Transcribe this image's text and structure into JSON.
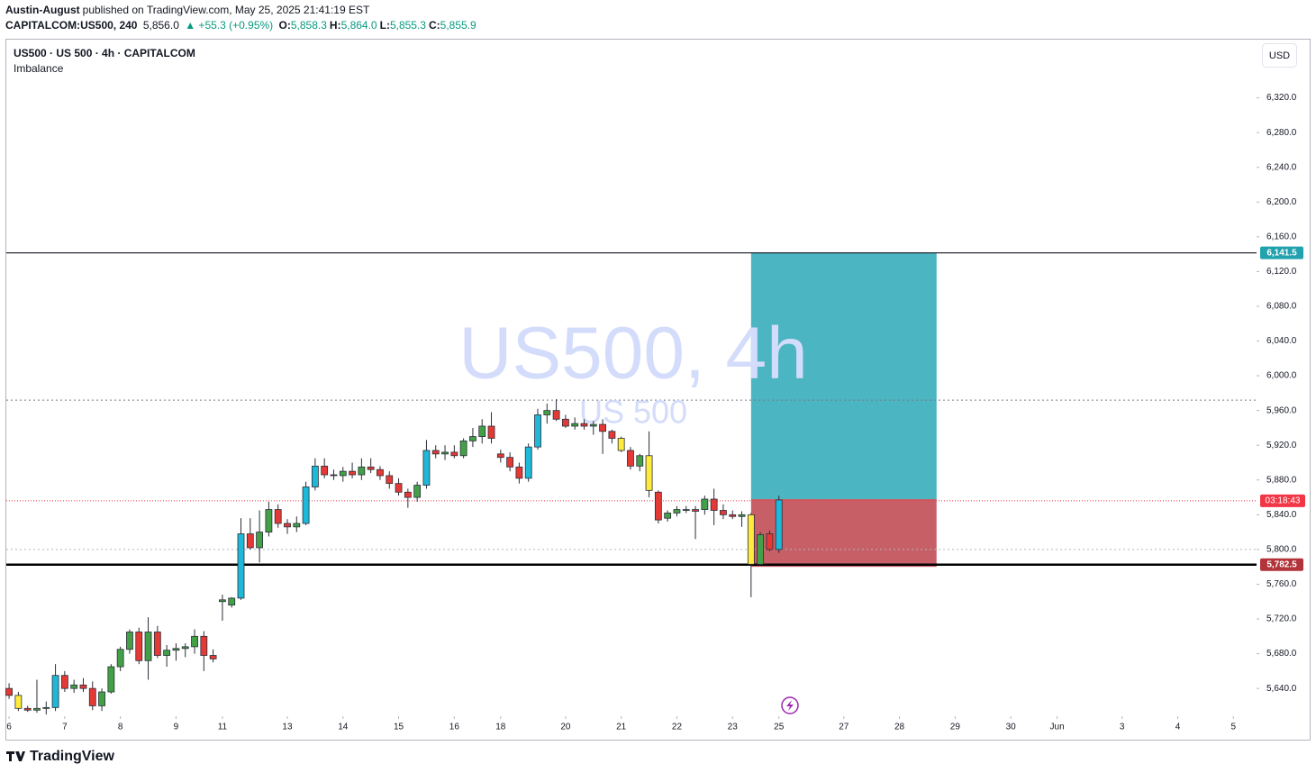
{
  "header": {
    "author": "Austin-August",
    "published": "published on TradingView.com, May 25, 2025 21:41:19 EST",
    "symbol": "CAPITALCOM:US500, 240",
    "last": "5,856.0",
    "change": "▲ +55.3 (+0.95%)",
    "ohlc": [
      {
        "key": "O:",
        "value": "5,858.3"
      },
      {
        "key": "H:",
        "value": "5,864.0"
      },
      {
        "key": "L:",
        "value": "5,855.3"
      },
      {
        "key": "C:",
        "value": "5,855.9"
      }
    ]
  },
  "chart_data": {
    "type": "candlestick",
    "title": "US500 · US 500 · 4h · CAPITALCOM",
    "indicator": "Imbalance",
    "currency": "USD",
    "watermark": "US500, 4h",
    "watermark_sub": "US 500",
    "logo": "TradingView",
    "open": [
      5640,
      5632,
      5617,
      5615,
      5617,
      5618,
      5655,
      5640,
      5644,
      5640,
      5620,
      5636,
      5665,
      5685,
      5705,
      5672,
      5705,
      5678,
      5684,
      5686,
      5688,
      5700,
      5678,
      5740,
      5736,
      5744,
      5818,
      5802,
      5820,
      5846,
      5830,
      5826,
      5830,
      5872,
      5896,
      5886,
      5885,
      5890,
      5886,
      5895,
      5892,
      5885,
      5876,
      5866,
      5860,
      5874,
      5914,
      5910,
      5912,
      5908,
      5925,
      5930,
      5942,
      5910,
      5906,
      5895,
      5882,
      5918,
      5955,
      5960,
      5950,
      5942,
      5945,
      5942,
      5944,
      5936,
      5928,
      5914,
      5896,
      5908,
      5866,
      5836,
      5842,
      5846,
      5846,
      5846,
      5858,
      5845,
      5840,
      5838,
      5840,
      5783,
      5818,
      5800
    ],
    "high": [
      5646,
      5636,
      5620,
      5650,
      5625,
      5668,
      5660,
      5650,
      5652,
      5648,
      5640,
      5668,
      5688,
      5708,
      5710,
      5722,
      5712,
      5690,
      5692,
      5692,
      5708,
      5706,
      5685,
      5748,
      5745,
      5836,
      5836,
      5845,
      5855,
      5852,
      5835,
      5838,
      5878,
      5905,
      5905,
      5892,
      5895,
      5900,
      5905,
      5905,
      5896,
      5890,
      5882,
      5870,
      5878,
      5926,
      5920,
      5920,
      5920,
      5928,
      5940,
      5950,
      5958,
      5915,
      5912,
      5900,
      5922,
      5962,
      5968,
      5973,
      5955,
      5952,
      5950,
      5948,
      5950,
      5938,
      5930,
      5918,
      5910,
      5936,
      5868,
      5845,
      5850,
      5850,
      5850,
      5862,
      5870,
      5852,
      5845,
      5844,
      5842,
      5820,
      5822,
      5862
    ],
    "low": [
      5628,
      5614,
      5613,
      5612,
      5610,
      5614,
      5636,
      5635,
      5636,
      5615,
      5614,
      5634,
      5660,
      5680,
      5668,
      5650,
      5675,
      5665,
      5672,
      5676,
      5680,
      5660,
      5670,
      5718,
      5733,
      5742,
      5800,
      5785,
      5815,
      5825,
      5818,
      5820,
      5828,
      5868,
      5882,
      5880,
      5878,
      5882,
      5880,
      5888,
      5880,
      5870,
      5862,
      5848,
      5855,
      5870,
      5905,
      5903,
      5905,
      5905,
      5918,
      5922,
      5922,
      5900,
      5890,
      5876,
      5878,
      5915,
      5945,
      5948,
      5940,
      5938,
      5938,
      5932,
      5910,
      5922,
      5912,
      5892,
      5890,
      5860,
      5830,
      5832,
      5838,
      5842,
      5812,
      5840,
      5828,
      5835,
      5835,
      5826,
      5745,
      5782,
      5798,
      5796
    ],
    "close": [
      5632,
      5617,
      5615,
      5617,
      5618,
      5655,
      5640,
      5644,
      5640,
      5620,
      5636,
      5665,
      5685,
      5705,
      5672,
      5705,
      5678,
      5684,
      5686,
      5688,
      5700,
      5678,
      5674,
      5742,
      5744,
      5818,
      5802,
      5820,
      5846,
      5830,
      5826,
      5830,
      5872,
      5896,
      5886,
      5885,
      5890,
      5886,
      5895,
      5892,
      5885,
      5876,
      5866,
      5860,
      5874,
      5914,
      5910,
      5912,
      5908,
      5925,
      5930,
      5942,
      5928,
      5906,
      5895,
      5882,
      5918,
      5955,
      5960,
      5950,
      5942,
      5945,
      5942,
      5944,
      5936,
      5928,
      5914,
      5896,
      5908,
      5868,
      5834,
      5842,
      5846,
      5846,
      5844,
      5858,
      5845,
      5840,
      5838,
      5840,
      5783,
      5817,
      5800,
      5857
    ],
    "colors": [
      "#e53935",
      "#ffeb3b",
      "#e53935",
      "#43a047",
      "#43a047",
      "#1eb8d8",
      "#e53935",
      "#43a047",
      "#e53935",
      "#e53935",
      "#43a047",
      "#43a047",
      "#43a047",
      "#43a047",
      "#e53935",
      "#43a047",
      "#e53935",
      "#43a047",
      "#43a047",
      "#43a047",
      "#43a047",
      "#e53935",
      "#e53935",
      "#43a047",
      "#43a047",
      "#1eb8d8",
      "#e53935",
      "#43a047",
      "#43a047",
      "#e53935",
      "#e53935",
      "#43a047",
      "#1eb8d8",
      "#1eb8d8",
      "#e53935",
      "#e53935",
      "#43a047",
      "#e53935",
      "#43a047",
      "#e53935",
      "#e53935",
      "#e53935",
      "#e53935",
      "#e53935",
      "#43a047",
      "#1eb8d8",
      "#e53935",
      "#43a047",
      "#e53935",
      "#43a047",
      "#43a047",
      "#43a047",
      "#e53935",
      "#e53935",
      "#e53935",
      "#e53935",
      "#1eb8d8",
      "#1eb8d8",
      "#43a047",
      "#e53935",
      "#e53935",
      "#43a047",
      "#e53935",
      "#43a047",
      "#e53935",
      "#e53935",
      "#ffeb3b",
      "#e53935",
      "#43a047",
      "#ffeb3b",
      "#e53935",
      "#43a047",
      "#43a047",
      "#43a047",
      "#e53935",
      "#43a047",
      "#e53935",
      "#e53935",
      "#e53935",
      "#43a047",
      "#ffeb3b",
      "#43a047",
      "#e53935",
      "#1eb8d8"
    ],
    "xlim": [
      -0.3,
      134.5
    ],
    "xticks": [
      {
        "value": 0,
        "label": "6"
      },
      {
        "value": 6,
        "label": "7"
      },
      {
        "value": 12,
        "label": "8"
      },
      {
        "value": 18,
        "label": "9"
      },
      {
        "value": 23,
        "label": "11"
      },
      {
        "value": 30,
        "label": "13"
      },
      {
        "value": 36,
        "label": "14"
      },
      {
        "value": 42,
        "label": "15"
      },
      {
        "value": 48,
        "label": "16"
      },
      {
        "value": 53,
        "label": "18"
      },
      {
        "value": 60,
        "label": "20"
      },
      {
        "value": 66,
        "label": "21"
      },
      {
        "value": 72,
        "label": "22"
      },
      {
        "value": 78,
        "label": "23"
      },
      {
        "value": 83,
        "label": "25"
      },
      {
        "value": 90,
        "label": "27"
      },
      {
        "value": 96,
        "label": "28"
      },
      {
        "value": 102,
        "label": "29"
      },
      {
        "value": 108,
        "label": "30"
      },
      {
        "value": 113,
        "label": "Jun"
      },
      {
        "value": 120,
        "label": "3"
      },
      {
        "value": 126,
        "label": "4"
      },
      {
        "value": 132,
        "label": "5"
      }
    ],
    "ylim": [
      5608,
      6387
    ],
    "yticks": [
      {
        "value": 5640,
        "label": "5,640.0"
      },
      {
        "value": 5680,
        "label": "5,680.0"
      },
      {
        "value": 5720,
        "label": "5,720.0"
      },
      {
        "value": 5760,
        "label": "5,760.0"
      },
      {
        "value": 5800,
        "label": "5,800.0"
      },
      {
        "value": 5840,
        "label": "5,840.0"
      },
      {
        "value": 5880,
        "label": "5,880.0"
      },
      {
        "value": 5920,
        "label": "5,920.0"
      },
      {
        "value": 5960,
        "label": "5,960.0"
      },
      {
        "value": 6000,
        "label": "6,000.0"
      },
      {
        "value": 6040,
        "label": "6,040.0"
      },
      {
        "value": 6080,
        "label": "6,080.0"
      },
      {
        "value": 6120,
        "label": "6,120.0"
      },
      {
        "value": 6160,
        "label": "6,160.0"
      },
      {
        "value": 6200,
        "label": "6,200.0"
      },
      {
        "value": 6240,
        "label": "6,240.0"
      },
      {
        "value": 6280,
        "label": "6,280.0"
      },
      {
        "value": 6320,
        "label": "6,320.0"
      }
    ],
    "hlines": [
      {
        "value": 6141.5,
        "label": "6,141.5",
        "color": "#131722",
        "badge": "#22a2ae",
        "width": 1.2
      },
      {
        "value": 5782.5,
        "label": "5,782.5",
        "color": "#000000",
        "badge": "#b2333a",
        "width": 2.5
      }
    ],
    "dotted_levels": [
      5972,
      5800
    ],
    "price_line": {
      "value": 5856,
      "countdown": "03:18:43",
      "color": "#f23645"
    },
    "position": {
      "start": 80,
      "end": 100,
      "entry": 5858,
      "target": 6141.5,
      "stop": 5780,
      "target_color": "#4bb5c1",
      "stop_color": "#c75f66"
    }
  }
}
